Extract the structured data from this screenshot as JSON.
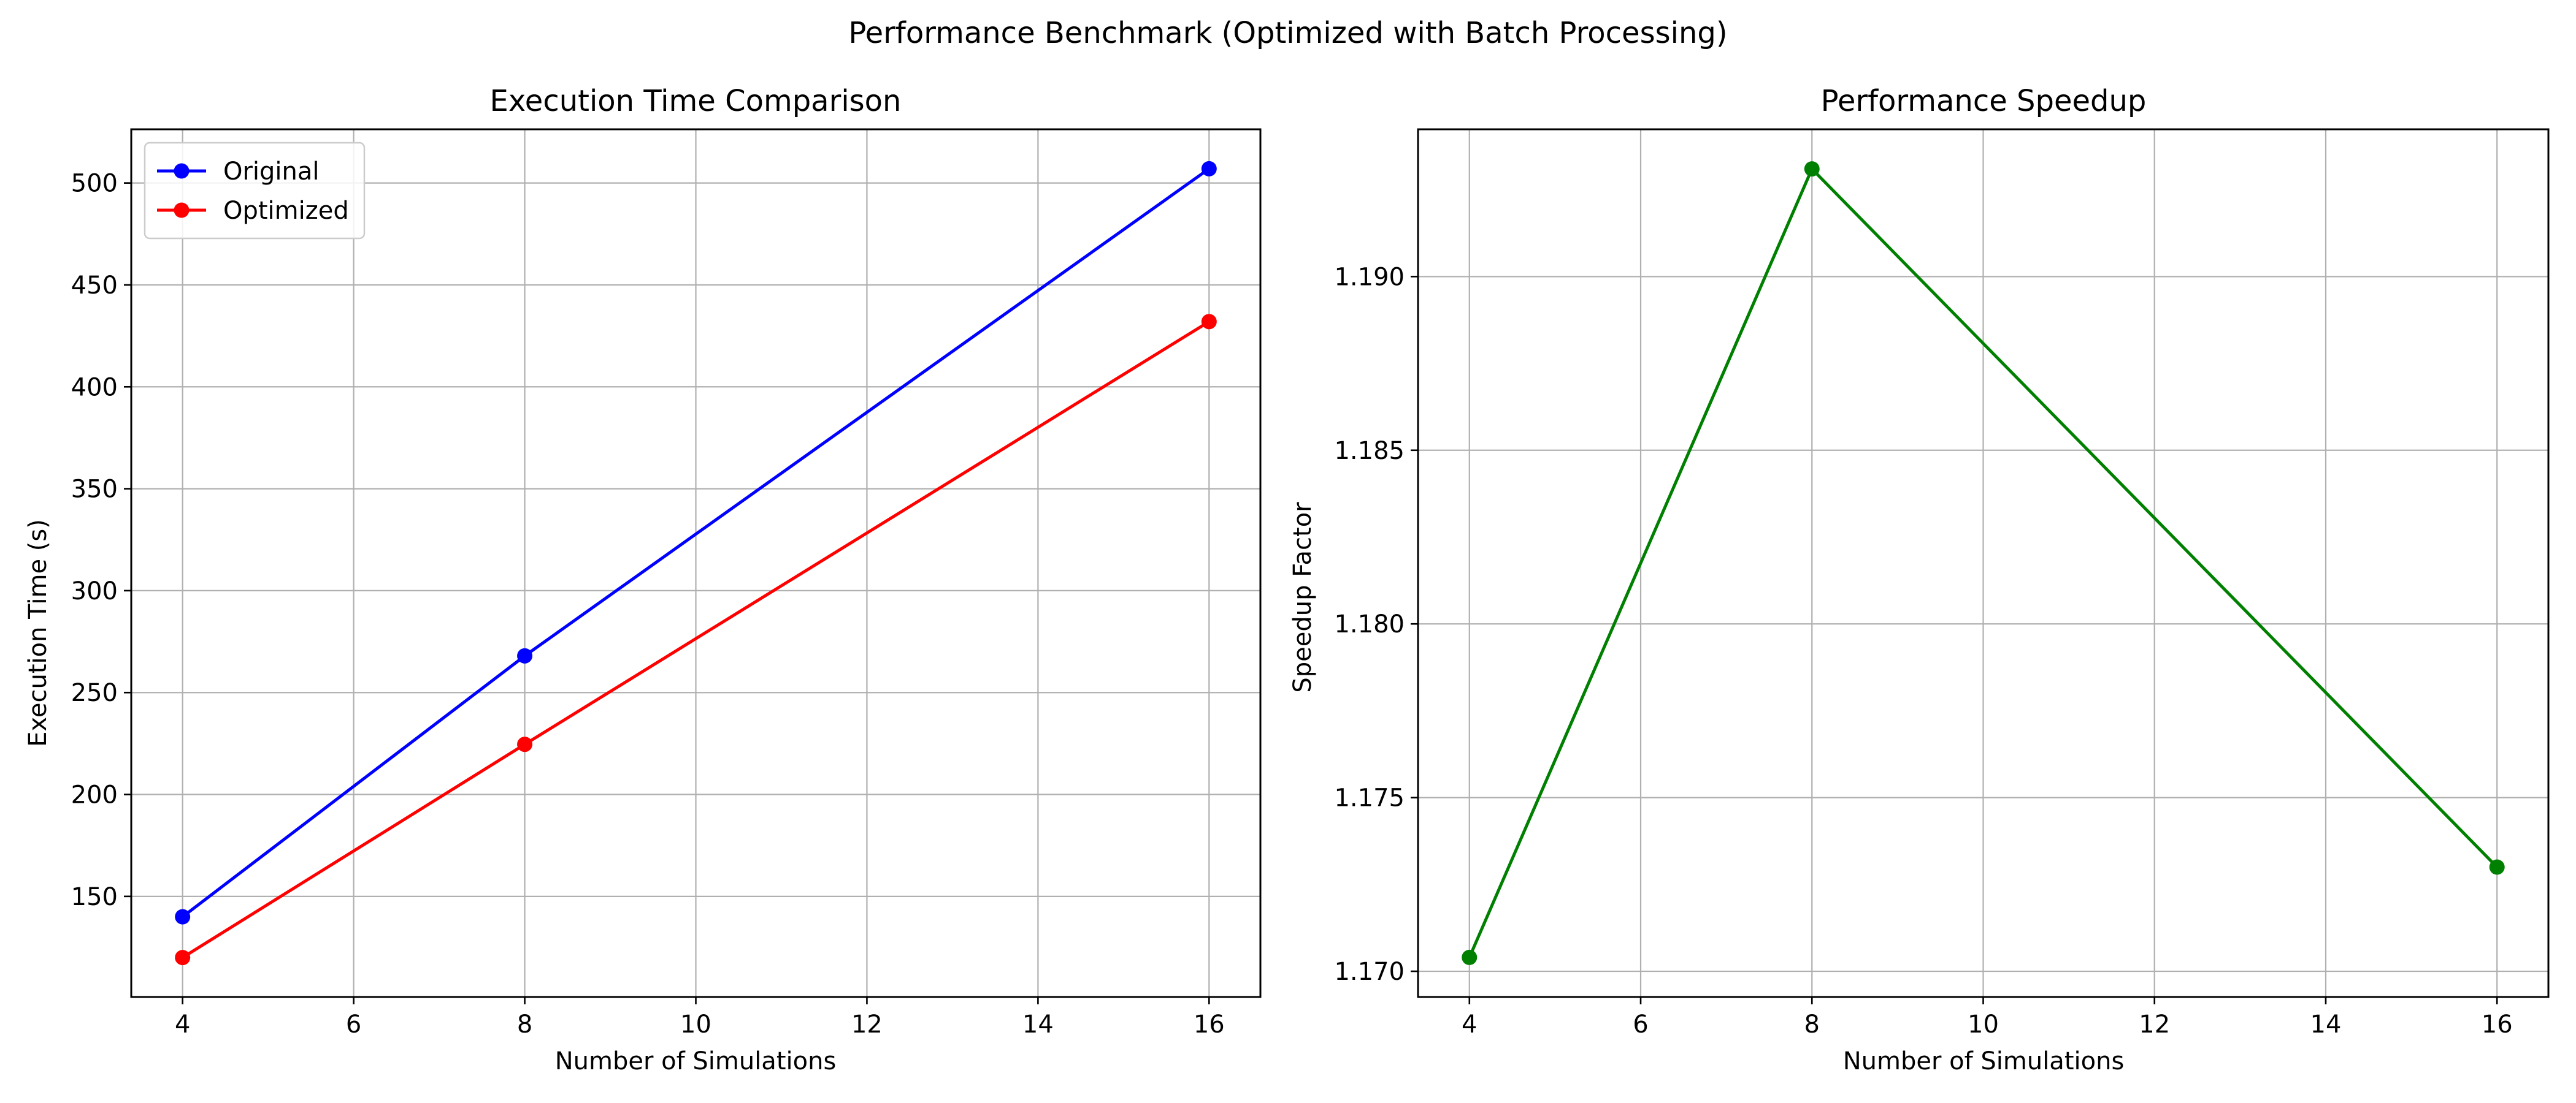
{
  "figure": {
    "title": "Performance Benchmark (Optimized with Batch Processing)"
  },
  "chart_data": [
    {
      "type": "line",
      "title": "Execution Time Comparison",
      "xlabel": "Number of Simulations",
      "ylabel": "Execution Time (s)",
      "x": [
        4,
        8,
        16
      ],
      "series": [
        {
          "name": "Original",
          "values": [
            140,
            268,
            507
          ],
          "color": "#0000ff"
        },
        {
          "name": "Optimized",
          "values": [
            120,
            224.6,
            432
          ],
          "color": "#ff0000"
        }
      ],
      "xlim": [
        3.4,
        16.6
      ],
      "ylim": [
        100.65,
        526.35
      ],
      "xticks": [
        4,
        6,
        8,
        10,
        12,
        14,
        16
      ],
      "yticks": [
        150,
        200,
        250,
        300,
        350,
        400,
        450,
        500
      ],
      "ytick_format": 0,
      "grid": true,
      "legend": "upper left"
    },
    {
      "type": "line",
      "title": "Performance Speedup",
      "xlabel": "Number of Simulations",
      "ylabel": "Speedup Factor",
      "x": [
        4,
        8,
        16
      ],
      "series": [
        {
          "name": "",
          "values": [
            1.1704,
            1.1931,
            1.173
          ],
          "color": "#008000"
        }
      ],
      "xlim": [
        3.4,
        16.6
      ],
      "ylim": [
        1.16926,
        1.19424
      ],
      "xticks": [
        4,
        6,
        8,
        10,
        12,
        14,
        16
      ],
      "yticks": [
        1.17,
        1.175,
        1.18,
        1.185,
        1.19
      ],
      "ytick_format": 3,
      "grid": true,
      "legend": "none"
    }
  ]
}
